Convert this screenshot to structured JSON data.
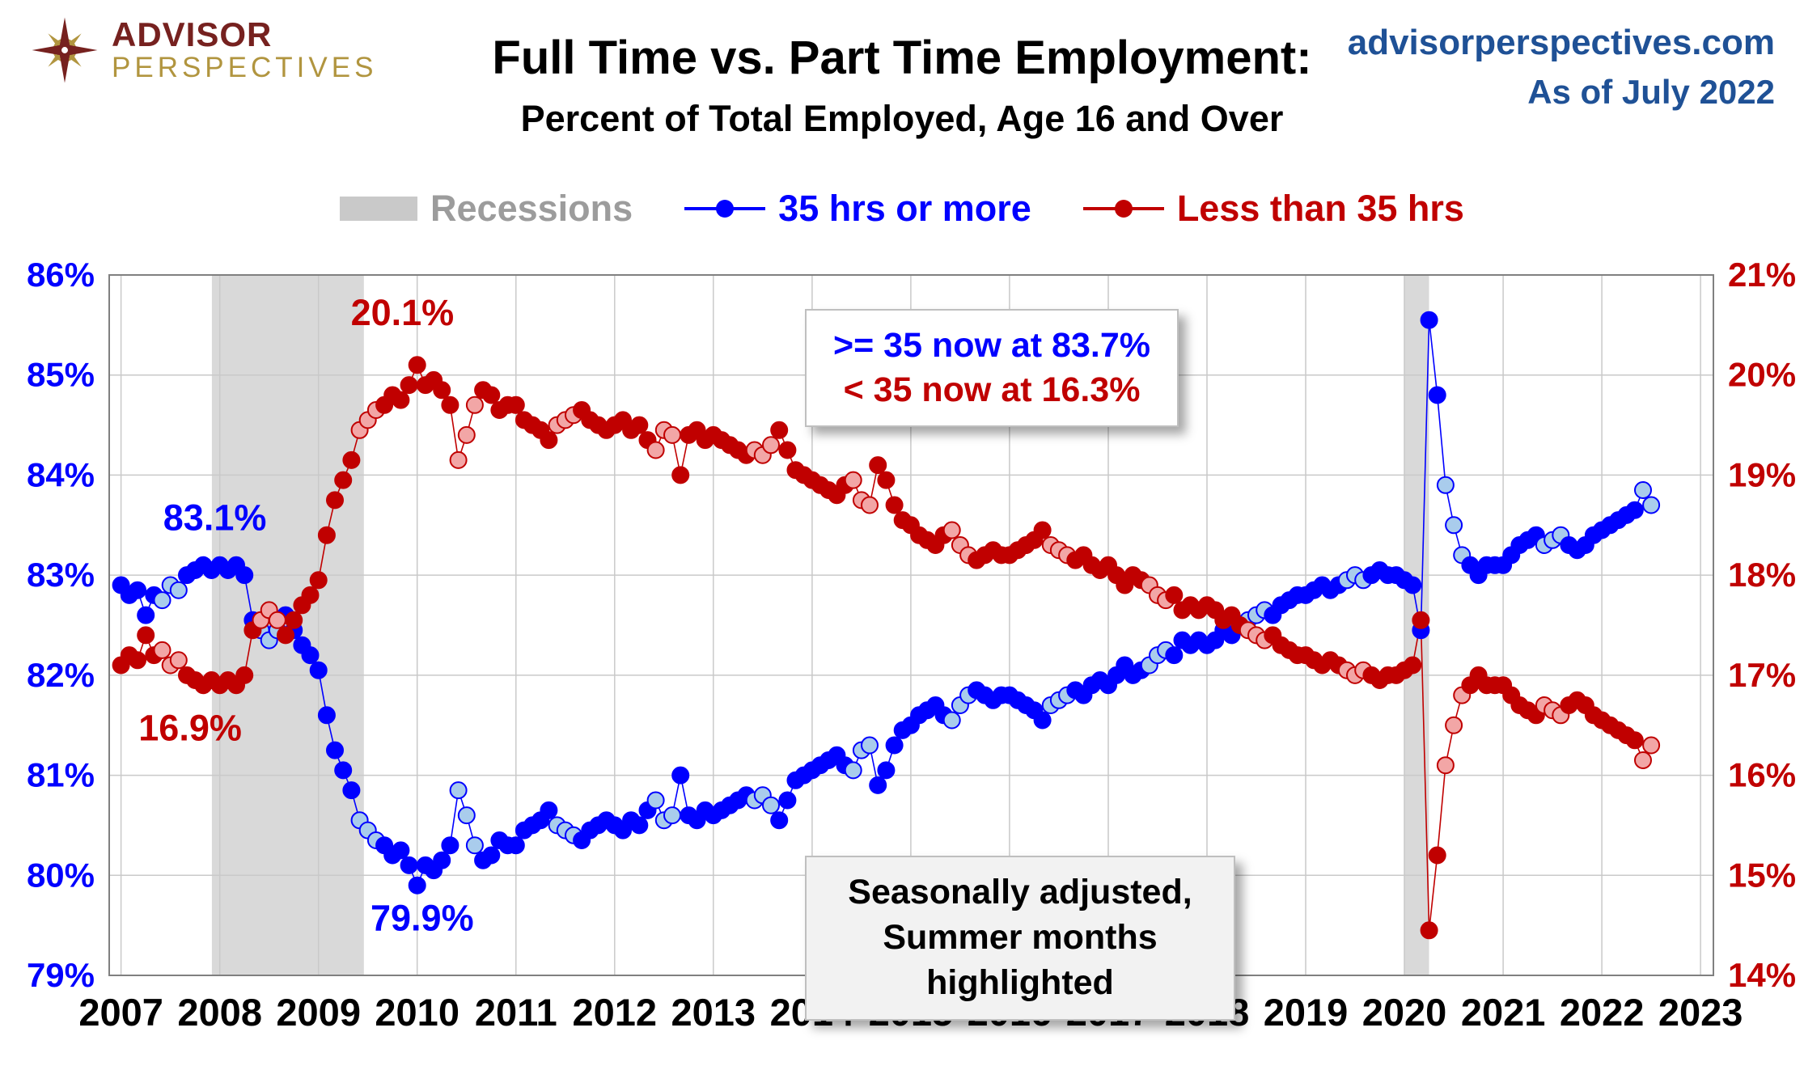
{
  "header": {
    "logo": {
      "line1": "ADVISOR",
      "line2": "PERSPECTIVES"
    },
    "title": "Full Time vs. Part Time Employment:",
    "subtitle": "Percent of Total Employed, Age 16 and Over",
    "source": "advisorperspectives.com",
    "as_of": "As of July 2022"
  },
  "legend": {
    "recessions": "Recessions",
    "full_time": "35 hrs or more",
    "part_time": "Less than 35 hrs"
  },
  "callouts": {
    "now_line1": ">= 35 now at 83.7%",
    "now_line2": "< 35 now at 16.3%",
    "note_line1": "Seasonally adjusted,",
    "note_line2": "Summer months highlighted"
  },
  "chart_data": {
    "type": "scatter",
    "title": "Full Time vs. Part Time Employment: Percent of Total Employed, Age 16 and Over",
    "frequency": "monthly",
    "start_year": 2007,
    "span": "2007-01 to 2022-07",
    "x_ticks": [
      2007,
      2008,
      2009,
      2010,
      2011,
      2012,
      2013,
      2014,
      2015,
      2016,
      2017,
      2018,
      2019,
      2020,
      2021,
      2022,
      2023
    ],
    "left_axis": {
      "min": 79,
      "max": 86,
      "tick_suffix": "%",
      "color": "#0000FF",
      "tick_labels": [
        "86%",
        "85%",
        "84%",
        "83%",
        "82%",
        "81%",
        "80%",
        "79%"
      ]
    },
    "right_axis": {
      "min": 14,
      "max": 21,
      "tick_suffix": "%",
      "color": "#C00000",
      "tick_labels": [
        "21%",
        "20%",
        "19%",
        "18%",
        "17%",
        "16%",
        "15%",
        "14%"
      ]
    },
    "grid": true,
    "legend_position": "top",
    "summer_months": [
      6,
      7,
      8
    ],
    "recessions": [
      [
        2007.92,
        2009.46
      ],
      [
        2020.0,
        2020.25
      ]
    ],
    "colors": {
      "grid": "#C9C9C9",
      "border": "#808080",
      "recession_band": "#D9D9D9"
    },
    "annotations": [
      {
        "text": "20.1%",
        "x": 2009.85,
        "y": 85.5,
        "color": "#C00000"
      },
      {
        "text": "83.1%",
        "x": 2007.95,
        "y": 83.45,
        "color": "#0000FF"
      },
      {
        "text": "16.9%",
        "x": 2007.7,
        "y": 81.35,
        "color": "#C00000"
      },
      {
        "text": "79.9%",
        "x": 2010.05,
        "y": 79.45,
        "color": "#0000FF"
      }
    ],
    "series": [
      {
        "id": "full-time",
        "name": "35 hrs or more",
        "axis": "left",
        "color": "#0000FF",
        "summer_fill": "#A9CCEC",
        "values": [
          82.9,
          82.8,
          82.85,
          82.6,
          82.8,
          82.75,
          82.9,
          82.85,
          83.0,
          83.05,
          83.1,
          83.05,
          83.1,
          83.05,
          83.1,
          83.0,
          82.55,
          82.45,
          82.35,
          82.45,
          82.6,
          82.45,
          82.3,
          82.2,
          82.05,
          81.6,
          81.25,
          81.05,
          80.85,
          80.55,
          80.45,
          80.35,
          80.3,
          80.2,
          80.25,
          80.1,
          79.9,
          80.1,
          80.05,
          80.15,
          80.3,
          80.85,
          80.6,
          80.3,
          80.15,
          80.2,
          80.35,
          80.3,
          80.3,
          80.45,
          80.5,
          80.55,
          80.65,
          80.5,
          80.45,
          80.4,
          80.35,
          80.45,
          80.5,
          80.55,
          80.5,
          80.45,
          80.55,
          80.5,
          80.65,
          80.75,
          80.55,
          80.6,
          81.0,
          80.6,
          80.55,
          80.65,
          80.6,
          80.65,
          80.7,
          80.75,
          80.8,
          80.75,
          80.8,
          80.7,
          80.55,
          80.75,
          80.95,
          81.0,
          81.05,
          81.1,
          81.15,
          81.2,
          81.1,
          81.05,
          81.25,
          81.3,
          80.9,
          81.05,
          81.3,
          81.45,
          81.5,
          81.6,
          81.65,
          81.7,
          81.6,
          81.55,
          81.7,
          81.8,
          81.85,
          81.8,
          81.75,
          81.8,
          81.8,
          81.75,
          81.7,
          81.65,
          81.55,
          81.7,
          81.75,
          81.8,
          81.85,
          81.8,
          81.9,
          81.95,
          81.9,
          82.0,
          82.1,
          82.0,
          82.05,
          82.1,
          82.2,
          82.25,
          82.2,
          82.35,
          82.3,
          82.35,
          82.3,
          82.35,
          82.45,
          82.4,
          82.5,
          82.55,
          82.6,
          82.65,
          82.6,
          82.7,
          82.75,
          82.8,
          82.8,
          82.85,
          82.9,
          82.85,
          82.9,
          82.95,
          83.0,
          82.95,
          83.0,
          83.05,
          83.0,
          83.0,
          82.95,
          82.9,
          82.45,
          85.55,
          84.8,
          83.9,
          83.5,
          83.2,
          83.1,
          83.0,
          83.1,
          83.1,
          83.1,
          83.2,
          83.3,
          83.35,
          83.4,
          83.3,
          83.35,
          83.4,
          83.3,
          83.25,
          83.3,
          83.4,
          83.45,
          83.5,
          83.55,
          83.6,
          83.65,
          83.85,
          83.7
        ]
      },
      {
        "id": "part-time",
        "name": "Less than 35 hrs",
        "axis": "right",
        "color": "#C00000",
        "summer_fill": "#F2A6A6",
        "values": [
          17.1,
          17.2,
          17.15,
          17.4,
          17.2,
          17.25,
          17.1,
          17.15,
          17.0,
          16.95,
          16.9,
          16.95,
          16.9,
          16.95,
          16.9,
          17.0,
          17.45,
          17.55,
          17.65,
          17.55,
          17.4,
          17.55,
          17.7,
          17.8,
          17.95,
          18.4,
          18.75,
          18.95,
          19.15,
          19.45,
          19.55,
          19.65,
          19.7,
          19.8,
          19.75,
          19.9,
          20.1,
          19.9,
          19.95,
          19.85,
          19.7,
          19.15,
          19.4,
          19.7,
          19.85,
          19.8,
          19.65,
          19.7,
          19.7,
          19.55,
          19.5,
          19.45,
          19.35,
          19.5,
          19.55,
          19.6,
          19.65,
          19.55,
          19.5,
          19.45,
          19.5,
          19.55,
          19.45,
          19.5,
          19.35,
          19.25,
          19.45,
          19.4,
          19.0,
          19.4,
          19.45,
          19.35,
          19.4,
          19.35,
          19.3,
          19.25,
          19.2,
          19.25,
          19.2,
          19.3,
          19.45,
          19.25,
          19.05,
          19.0,
          18.95,
          18.9,
          18.85,
          18.8,
          18.9,
          18.95,
          18.75,
          18.7,
          19.1,
          18.95,
          18.7,
          18.55,
          18.5,
          18.4,
          18.35,
          18.3,
          18.4,
          18.45,
          18.3,
          18.2,
          18.15,
          18.2,
          18.25,
          18.2,
          18.2,
          18.25,
          18.3,
          18.35,
          18.45,
          18.3,
          18.25,
          18.2,
          18.15,
          18.2,
          18.1,
          18.05,
          18.1,
          18.0,
          17.9,
          18.0,
          17.95,
          17.9,
          17.8,
          17.75,
          17.8,
          17.65,
          17.7,
          17.65,
          17.7,
          17.65,
          17.55,
          17.6,
          17.5,
          17.45,
          17.4,
          17.35,
          17.4,
          17.3,
          17.25,
          17.2,
          17.2,
          17.15,
          17.1,
          17.15,
          17.1,
          17.05,
          17.0,
          17.05,
          17.0,
          16.95,
          17.0,
          17.0,
          17.05,
          17.1,
          17.55,
          14.45,
          15.2,
          16.1,
          16.5,
          16.8,
          16.9,
          17.0,
          16.9,
          16.9,
          16.9,
          16.8,
          16.7,
          16.65,
          16.6,
          16.7,
          16.65,
          16.6,
          16.7,
          16.75,
          16.7,
          16.6,
          16.55,
          16.5,
          16.45,
          16.4,
          16.35,
          16.15,
          16.3
        ]
      }
    ]
  }
}
